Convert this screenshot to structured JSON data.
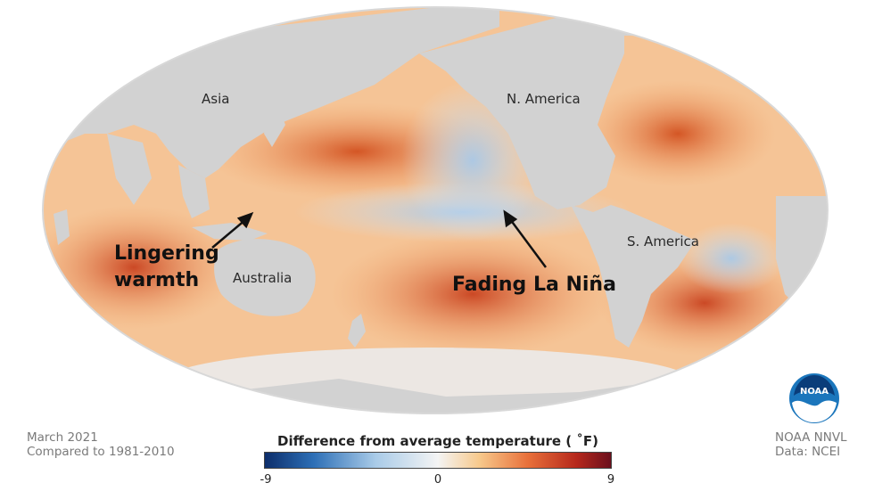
{
  "map": {
    "labels": {
      "asia": "Asia",
      "n_america": "N. America",
      "australia": "Australia",
      "s_america": "S. America"
    },
    "callouts": {
      "lingering": [
        "Lingering",
        "warmth"
      ],
      "fading": "Fading La Niña"
    },
    "colors": {
      "land": "#d2d2d2",
      "ocean_warm": "#ee8a4a",
      "ocean_hot": "#c9421f",
      "ocean_cool": "#c6dcf0",
      "ocean_neutral": "#f8e8d4"
    }
  },
  "footer": {
    "date": "March 2021",
    "baseline": "Compared to 1981-2010",
    "source": "NOAA NNVL",
    "data_credit": "Data: NCEI"
  },
  "legend": {
    "title": "Difference from average temperature ( ˚F)",
    "min_label": "-9",
    "mid_label": "0",
    "max_label": "9",
    "range": [
      -9,
      9
    ],
    "colors": [
      "#0d2e6b",
      "#2d6fb6",
      "#a9cbe8",
      "#f4f4f4",
      "#f7c98c",
      "#e8703a",
      "#b6281c",
      "#6b0f1c"
    ]
  },
  "logo": {
    "text": "NOAA",
    "icon": "noaa-logo-icon"
  }
}
